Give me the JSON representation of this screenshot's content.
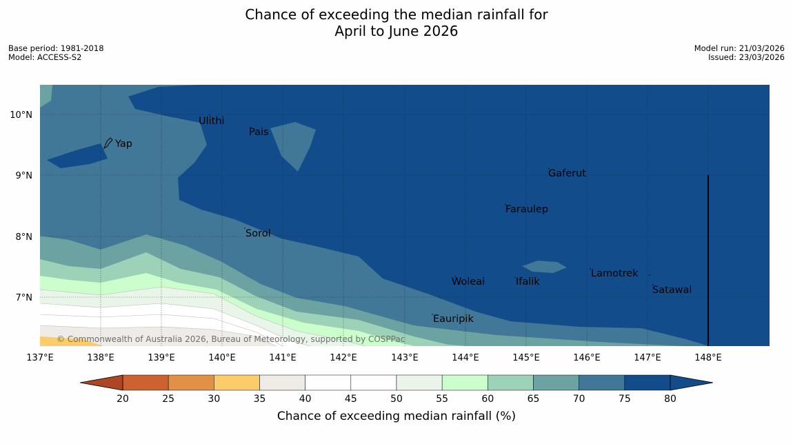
{
  "header": {
    "title_line1": "Chance of exceeding the median rainfall for",
    "title_line2": "April to June 2026",
    "base_period": "Base period: 1981-2018",
    "model": "Model: ACCESS-S2",
    "model_run": "Model run: 21/03/2026",
    "issued": "Issued: 23/03/2026"
  },
  "map": {
    "lat_labels": [
      "10°N",
      "9°N",
      "8°N",
      "7°N"
    ],
    "lon_labels": [
      "137°E",
      "138°E",
      "139°E",
      "140°E",
      "141°E",
      "142°E",
      "143°E",
      "144°E",
      "145°E",
      "146°E",
      "147°E",
      "148°E"
    ],
    "places": [
      "Ulithi",
      "Pais",
      "Yap",
      "Gaferut",
      "Faraulep",
      "Sorol",
      "Lamotrek",
      "Woleai",
      "Ifalik",
      "Satawal",
      "Eauripik"
    ],
    "copyright": "© Commonwealth of Australia 2026, Bureau of Meteorology, supported by COSPPac"
  },
  "colorbar": {
    "ticks": [
      "20",
      "25",
      "30",
      "35",
      "40",
      "45",
      "50",
      "55",
      "60",
      "65",
      "70",
      "75",
      "80"
    ],
    "colors": [
      "#ae4624",
      "#cd6130",
      "#e09146",
      "#fccb6a",
      "#efebe6",
      "#ffffff",
      "#ffffff",
      "#eaf5ea",
      "#ccfdcc",
      "#9dd2b8",
      "#6ca3a2",
      "#417797",
      "#124c8b"
    ],
    "title": "Chance of exceeding median rainfall (%)"
  }
}
